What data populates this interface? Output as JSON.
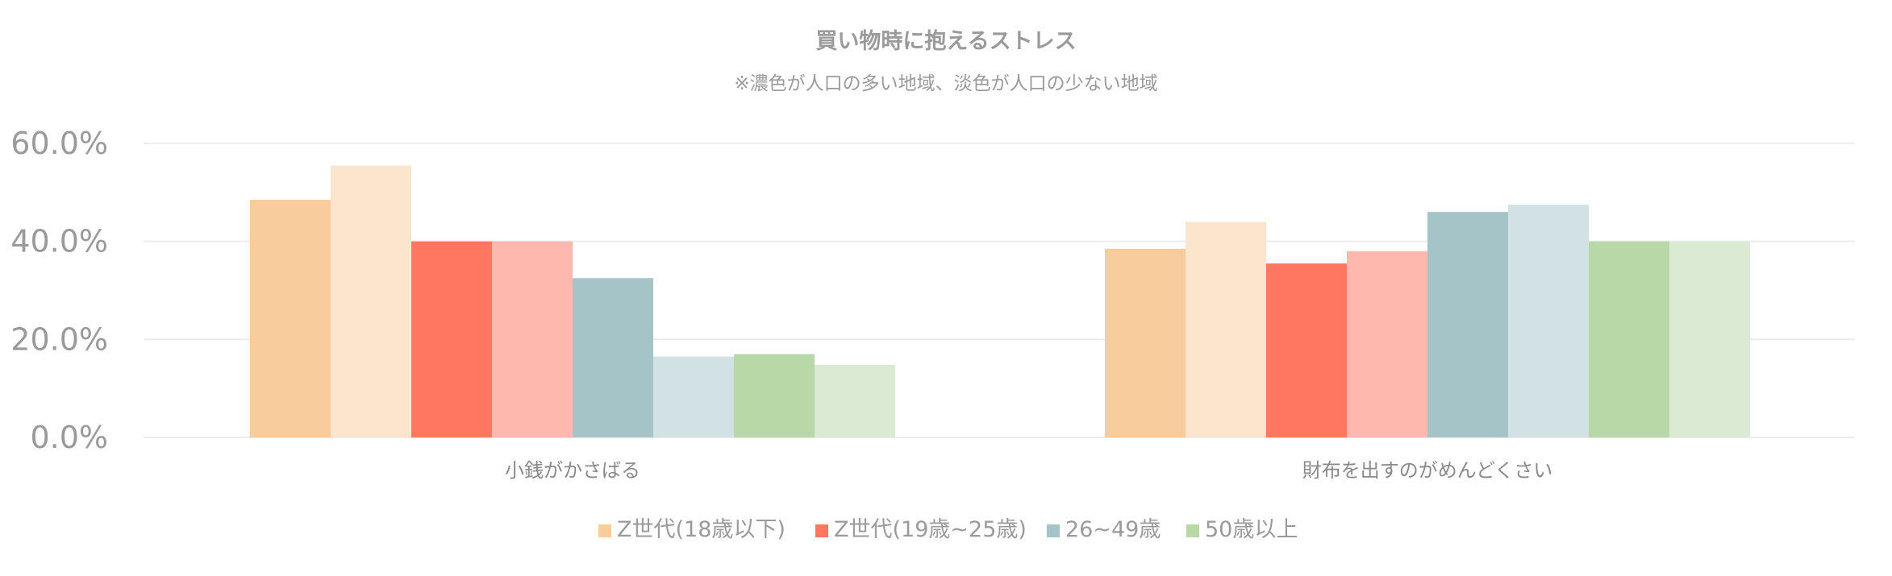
{
  "chart_data": {
    "type": "bar",
    "title": "買い物時に抱えるストレス",
    "subtitle": "※濃色が人口の多い地域、淡色が人口の少ない地域",
    "categories": [
      "小銭がかさばる",
      "財布を出すのがめんどくさい"
    ],
    "y_ticks": [
      "0.0%",
      "20.0%",
      "40.0%",
      "60.0%"
    ],
    "ylim": [
      0,
      60
    ],
    "grid": true,
    "legend_position": "bottom",
    "legend": [
      {
        "label": "Z世代(18歳以下)",
        "color": "#f9cc9d"
      },
      {
        "label": "Z世代(19歳~25歳)",
        "color": "#ff7761"
      },
      {
        "label": "26~49歳",
        "color": "#a4c4c8"
      },
      {
        "label": "50歳以上",
        "color": "#b8d8a8"
      }
    ],
    "series": [
      {
        "group": "Z世代(18歳以下)",
        "shade": "dark",
        "color": "#f9cc9d",
        "values": [
          48.5,
          38.5
        ]
      },
      {
        "group": "Z世代(18歳以下)",
        "shade": "light",
        "color": "#fce5cd",
        "values": [
          55.5,
          44.0
        ]
      },
      {
        "group": "Z世代(19歳~25歳)",
        "shade": "dark",
        "color": "#ff7761",
        "values": [
          40.0,
          35.5
        ]
      },
      {
        "group": "Z世代(19歳~25歳)",
        "shade": "light",
        "color": "#ffb8ae",
        "values": [
          40.0,
          38.0
        ]
      },
      {
        "group": "26~49歳",
        "shade": "dark",
        "color": "#a4c4c8",
        "values": [
          32.5,
          46.0
        ]
      },
      {
        "group": "26~49歳",
        "shade": "light",
        "color": "#d2e1e4",
        "values": [
          16.5,
          47.5
        ]
      },
      {
        "group": "50歳以上",
        "shade": "dark",
        "color": "#b8d8a8",
        "values": [
          17.0,
          40.0
        ]
      },
      {
        "group": "50歳以上",
        "shade": "light",
        "color": "#dbead2",
        "values": [
          14.8,
          40.0
        ]
      }
    ]
  }
}
